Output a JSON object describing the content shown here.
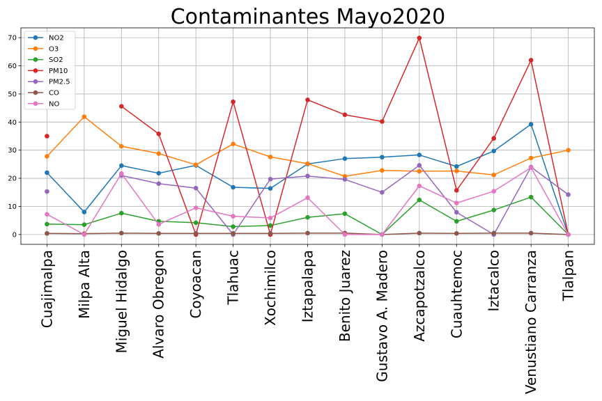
{
  "chart_data": {
    "type": "line",
    "title": "Contaminantes Mayo2020",
    "xlabel": "",
    "ylabel": "",
    "categories": [
      "Cuajimalpa",
      "Milpa Alta",
      "Miguel Hidalgo",
      "Alvaro Obregon",
      "Coyoacan",
      "Tlahuac",
      "Xochimilco",
      "Iztapalapa",
      "Benito Juarez",
      "Gustavo A. Madero",
      "Azcapotzalco",
      "Cuauhtemoc",
      "Iztacalco",
      "Venustiano Carranza",
      "Tlalpan"
    ],
    "ylim": [
      -3.5,
      73.5
    ],
    "yticks": [
      0,
      10,
      20,
      30,
      40,
      50,
      60,
      70
    ],
    "ytick_labels": [
      "0",
      "10",
      "20",
      "30",
      "40",
      "50",
      "60",
      "70"
    ],
    "grid": true,
    "legend_position": "top-left",
    "series": [
      {
        "name": "NO2",
        "color": "#1f77b4",
        "values": [
          22.0,
          8.0,
          24.5,
          21.8,
          24.6,
          16.8,
          16.4,
          25.1,
          27.0,
          27.5,
          28.3,
          24.2,
          29.7,
          39.2,
          0.0
        ]
      },
      {
        "name": "O3",
        "color": "#ff7f0e",
        "values": [
          27.8,
          41.9,
          31.4,
          28.8,
          24.8,
          32.2,
          27.6,
          25.2,
          20.7,
          22.8,
          22.5,
          22.6,
          21.2,
          27.2,
          30.0
        ]
      },
      {
        "name": "SO2",
        "color": "#2ca02c",
        "values": [
          3.7,
          3.5,
          7.6,
          4.7,
          4.2,
          2.8,
          3.2,
          6.1,
          7.4,
          0.0,
          12.3,
          4.7,
          8.7,
          13.3,
          0.0
        ]
      },
      {
        "name": "PM10",
        "color": "#d62728",
        "values": [
          35.0,
          null,
          45.6,
          35.8,
          0.0,
          47.2,
          0.0,
          47.9,
          42.6,
          40.2,
          69.9,
          15.7,
          34.2,
          62.0,
          0.0
        ]
      },
      {
        "name": "PM2.5",
        "color": "#9467bd",
        "values": [
          15.3,
          null,
          21.0,
          18.1,
          16.5,
          0.0,
          19.7,
          20.8,
          19.6,
          15.0,
          24.6,
          7.9,
          0.0,
          24.0,
          14.2
        ]
      },
      {
        "name": "CO",
        "color": "#8c564b",
        "values": [
          0.4,
          0.3,
          0.5,
          0.4,
          0.4,
          0.4,
          0.4,
          0.5,
          0.5,
          0.0,
          0.5,
          0.4,
          0.5,
          0.5,
          0.0
        ]
      },
      {
        "name": "NO",
        "color": "#e377c2",
        "values": [
          7.2,
          0.0,
          21.7,
          3.6,
          9.5,
          6.5,
          5.9,
          13.1,
          0.0,
          0.0,
          17.3,
          11.2,
          15.4,
          23.8,
          0.0
        ]
      }
    ]
  }
}
